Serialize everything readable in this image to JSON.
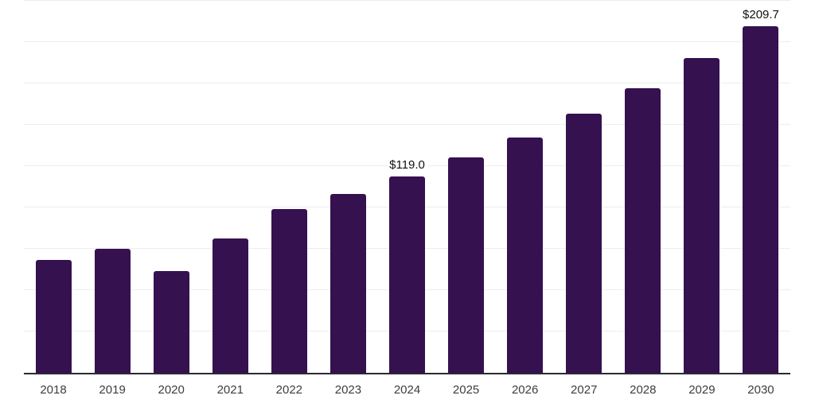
{
  "chart_data": {
    "type": "bar",
    "title": "",
    "xlabel": "",
    "ylabel": "",
    "categories": [
      "2018",
      "2019",
      "2020",
      "2021",
      "2022",
      "2023",
      "2024",
      "2025",
      "2026",
      "2027",
      "2028",
      "2029",
      "2030"
    ],
    "values": [
      68.3,
      75.0,
      61.5,
      81.3,
      99.0,
      108.2,
      119.0,
      130.3,
      142.5,
      156.9,
      172.3,
      190.5,
      209.7
    ],
    "data_labels": [
      "",
      "",
      "",
      "",
      "",
      "",
      "$119.0",
      "",
      "",
      "",
      "",
      "",
      "$209.7"
    ],
    "ylim": [
      0,
      225.5
    ],
    "gridline_interval": 25,
    "grid": "horizontal",
    "legend_position": "none",
    "y_axis_tick_labels_visible": false
  },
  "style": {
    "bar_color": "#351150",
    "gridline_color": "#ededed",
    "axis_line_color": "#2a2a33",
    "tick_label_color": "#3d3d3d",
    "value_label_color": "#111111",
    "background_color": "#ffffff"
  }
}
